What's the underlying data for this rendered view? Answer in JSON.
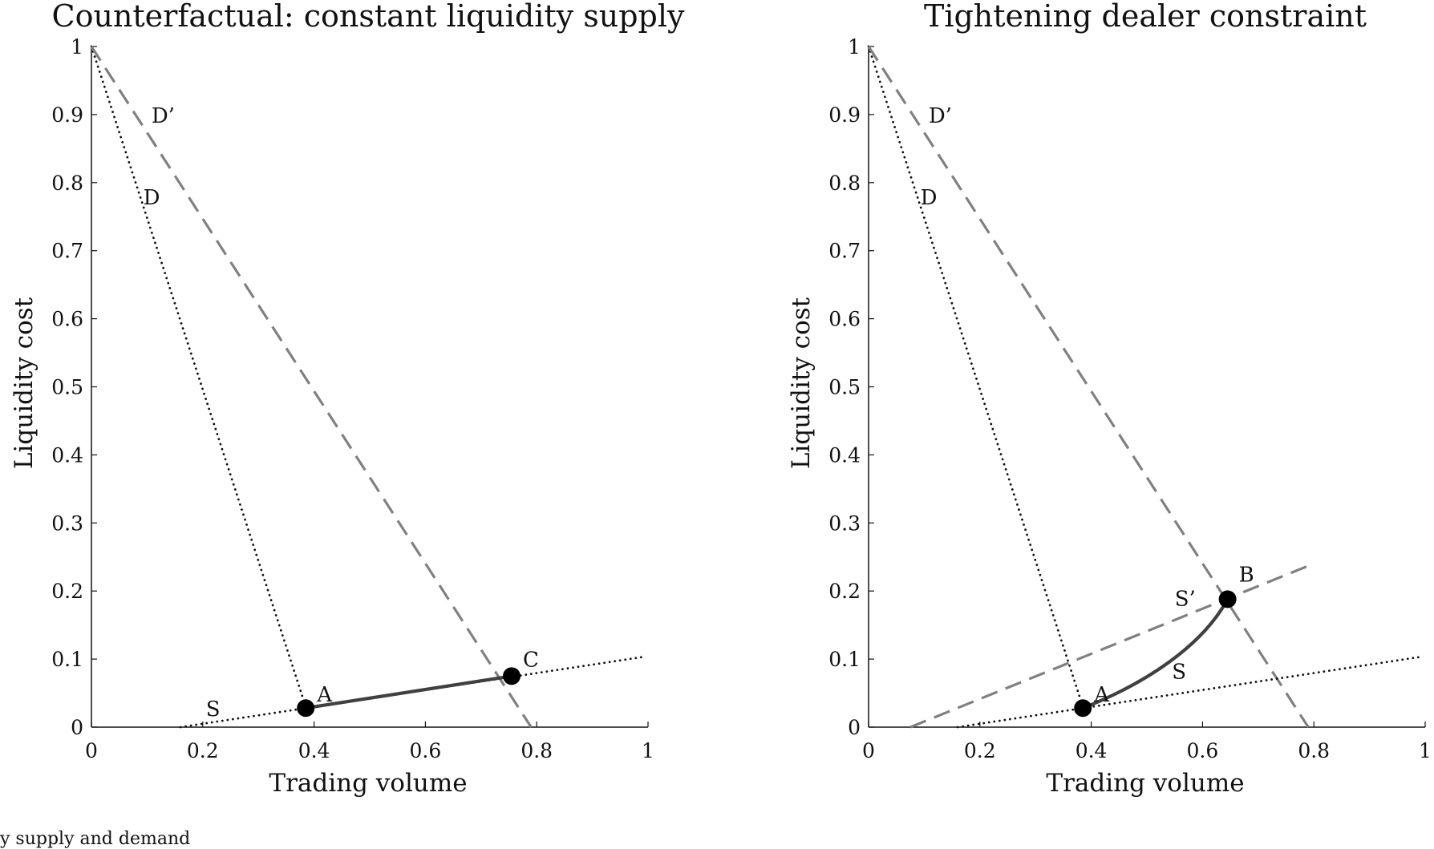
{
  "chart_data": [
    {
      "type": "line",
      "title": "Counterfactual: constant liquidity supply",
      "xlabel": "Trading volume",
      "ylabel": "Liquidity cost",
      "xlim": [
        0,
        1
      ],
      "ylim": [
        0,
        1
      ],
      "xticks": [
        "0",
        "0.2",
        "0.4",
        "0.6",
        "0.8",
        "1"
      ],
      "yticks": [
        "0",
        "0.1",
        "0.2",
        "0.3",
        "0.4",
        "0.5",
        "0.6",
        "0.7",
        "0.8",
        "0.9",
        "1"
      ],
      "grid": false,
      "series": [
        {
          "name": "D",
          "style": "dotted",
          "color": "#111111",
          "x": [
            0,
            0.385
          ],
          "y": [
            1,
            0.03
          ]
        },
        {
          "name": "D’",
          "style": "dashed",
          "color": "#808080",
          "x": [
            0,
            0.79
          ],
          "y": [
            1,
            0.0
          ]
        },
        {
          "name": "S",
          "style": "dotted",
          "color": "#111111",
          "x": [
            0.16,
            0.99
          ],
          "y": [
            0.0,
            0.103
          ]
        },
        {
          "style": "solid",
          "color": "#404040",
          "x": [
            0.385,
            0.755
          ],
          "y": [
            0.028,
            0.075
          ]
        }
      ],
      "points": [
        {
          "label": "A",
          "x": 0.385,
          "y": 0.028
        },
        {
          "label": "C",
          "x": 0.755,
          "y": 0.075
        }
      ]
    },
    {
      "type": "line",
      "title": "Tightening dealer constraint",
      "xlabel": "Trading volume",
      "ylabel": "Liquidity cost",
      "xlim": [
        0,
        1
      ],
      "ylim": [
        0,
        1
      ],
      "xticks": [
        "0",
        "0.2",
        "0.4",
        "0.6",
        "0.8",
        "1"
      ],
      "yticks": [
        "0",
        "0.1",
        "0.2",
        "0.3",
        "0.4",
        "0.5",
        "0.6",
        "0.7",
        "0.8",
        "0.9",
        "1"
      ],
      "grid": false,
      "series": [
        {
          "name": "D",
          "style": "dotted",
          "color": "#111111",
          "x": [
            0,
            0.385
          ],
          "y": [
            1,
            0.03
          ]
        },
        {
          "name": "D’",
          "style": "dashed",
          "color": "#808080",
          "x": [
            0,
            0.79
          ],
          "y": [
            1,
            0.0
          ]
        },
        {
          "name": "S",
          "style": "dotted",
          "color": "#111111",
          "x": [
            0.16,
            0.99
          ],
          "y": [
            0.0,
            0.103
          ]
        },
        {
          "name": "S’",
          "style": "dashed",
          "color": "#808080",
          "x": [
            0.075,
            0.79
          ],
          "y": [
            0.0,
            0.237
          ]
        },
        {
          "style": "solid",
          "color": "#404040",
          "curve": true,
          "x": [
            0.385,
            0.5,
            0.6,
            0.645
          ],
          "y": [
            0.028,
            0.065,
            0.12,
            0.188
          ]
        }
      ],
      "points": [
        {
          "label": "A",
          "x": 0.385,
          "y": 0.028
        },
        {
          "label": "B",
          "x": 0.645,
          "y": 0.188
        }
      ]
    }
  ],
  "footer_text": "y supply and demand"
}
